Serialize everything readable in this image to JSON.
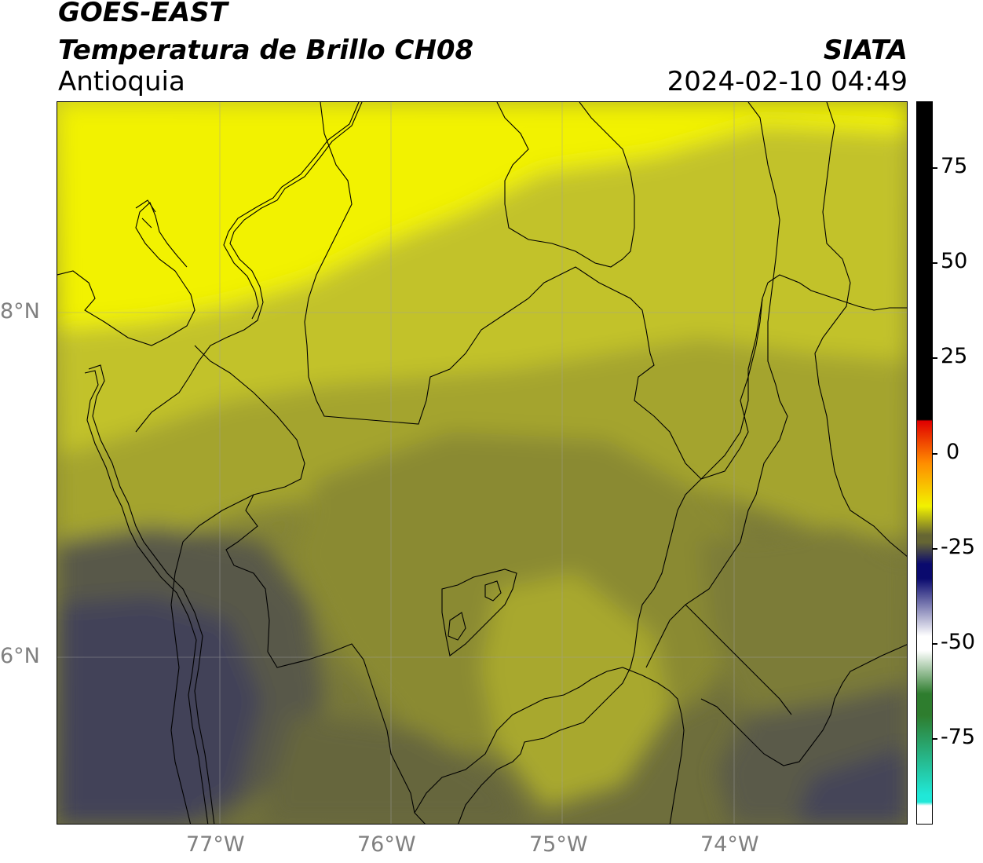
{
  "header": {
    "satellite": "GOES-EAST",
    "product": "Temperatura de Brillo CH08",
    "region": "Antioquia",
    "agency": "SIATA",
    "datetime": "2024-02-10 04:49"
  },
  "map": {
    "lat_labels": [
      "8°N",
      "6°N"
    ],
    "lon_labels": [
      "77°W",
      "76°W",
      "75°W",
      "74°W"
    ],
    "lon_range": [
      -77.95,
      -73.0
    ],
    "lat_range": [
      4.95,
      9.15
    ],
    "grid": true
  },
  "colorbar": {
    "ticks": [
      "75",
      "50",
      "25",
      "0",
      "-25",
      "-50",
      "-75"
    ],
    "range": [
      -95,
      92
    ],
    "colors": {
      "black": "#000000",
      "red": "#e00000",
      "orange": "#ff8c00",
      "yellow": "#f2f200",
      "olive": "#666633",
      "navy": "#0a0a6e",
      "white": "#ffffff",
      "green": "#2e7d2e",
      "cyan": "#20e8d8"
    }
  },
  "field_colors": {
    "bright_yellow": "#f2f200",
    "yellow": "#c7c72a",
    "olive_light": "#a3a32e",
    "olive": "#858535",
    "olive_dark": "#6e6e3c",
    "gray": "#565648",
    "slate": "#444458"
  }
}
